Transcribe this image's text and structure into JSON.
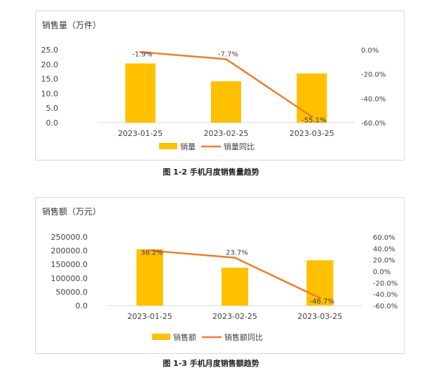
{
  "colors": {
    "bar": "#FFC000",
    "line": "#ED7D31",
    "grid": "#d9d9d9",
    "text": "#404040"
  },
  "captions": [
    "图 1-2  手机月度销售量趋势",
    "图 1-3  手机月度销售额趋势"
  ],
  "chart_data": [
    {
      "type": "bar",
      "title": "销售量（万件）",
      "categories": [
        "2023-01-25",
        "2023-02-25",
        "2023-03-25"
      ],
      "series": [
        {
          "name": "销量",
          "type": "bar",
          "axis": "left",
          "values": [
            20.3,
            14.2,
            16.9
          ]
        },
        {
          "name": "销量同比",
          "type": "line",
          "axis": "right",
          "values": [
            -1.9,
            -7.7,
            -55.1
          ],
          "labels": [
            "-1.9%",
            "-7.7%",
            "-55.1%"
          ]
        }
      ],
      "ylim": [
        0,
        25
      ],
      "y_ticks": [
        "25.0",
        "20.0",
        "15.0",
        "10.0",
        "5.0",
        "0.0"
      ],
      "y_tick_values": [
        25,
        20,
        15,
        10,
        5,
        0
      ],
      "y2lim": [
        -60,
        0
      ],
      "y2_ticks": [
        "0.0%",
        "-20.0%",
        "-40.0%",
        "-60.0%"
      ],
      "y2_tick_values": [
        0,
        -20,
        -40,
        -60
      ],
      "legend": "bottom",
      "grid": false
    },
    {
      "type": "bar",
      "title": "销售额（万元）",
      "categories": [
        "2023-01-25",
        "2023-02-25",
        "2023-03-25"
      ],
      "series": [
        {
          "name": "销售额",
          "type": "bar",
          "axis": "left",
          "values": [
            205000,
            138000,
            165000
          ]
        },
        {
          "name": "销售额同比",
          "type": "line",
          "axis": "right",
          "values": [
            36.2,
            23.7,
            -46.7
          ],
          "labels": [
            "36.2%",
            "23.7%",
            "-46.7%"
          ]
        }
      ],
      "ylim": [
        0,
        250000
      ],
      "y_ticks": [
        "250000.0",
        "200000.0",
        "150000.0",
        "100000.0",
        "50000.0",
        "0.0"
      ],
      "y_tick_values": [
        250000,
        200000,
        150000,
        100000,
        50000,
        0
      ],
      "y2lim": [
        -60,
        60
      ],
      "y2_ticks": [
        "60.0%",
        "40.0%",
        "20.0%",
        "0.0%",
        "-20.0%",
        "-40.0%",
        "-60.0%"
      ],
      "y2_tick_values": [
        60,
        40,
        20,
        0,
        -20,
        -40,
        -60
      ],
      "legend": "bottom",
      "grid": false
    }
  ]
}
